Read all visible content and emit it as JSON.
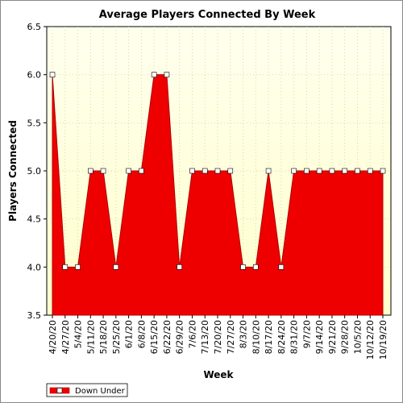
{
  "chart_data": {
    "type": "area",
    "title": "Average Players Connected By Week",
    "xlabel": "Week",
    "ylabel": "Players Connected",
    "ylim": [
      3.5,
      6.5
    ],
    "yticks": [
      "3.5",
      "4.0",
      "4.5",
      "5.0",
      "5.5",
      "6.0",
      "6.5"
    ],
    "grid": true,
    "legend_position": "bottom-left",
    "colors": {
      "fill": "#ee0000",
      "line": "#b00000",
      "plot_bg_top": "#ffffee",
      "plot_bg_bottom": "#ffffcc",
      "marker_fill": "#ffffff"
    },
    "x": [
      "4/20/20",
      "4/27/20",
      "5/4/20",
      "5/11/20",
      "5/18/20",
      "5/25/20",
      "6/1/20",
      "6/8/20",
      "6/15/20",
      "6/22/20",
      "6/29/20",
      "7/6/20",
      "7/13/20",
      "7/20/20",
      "7/27/20",
      "8/3/20",
      "8/10/20",
      "8/17/20",
      "8/24/20",
      "8/31/20",
      "9/7/20",
      "9/14/20",
      "9/21/20",
      "9/28/20",
      "10/5/20",
      "10/12/20",
      "10/19/20"
    ],
    "series": [
      {
        "name": "Down Under",
        "values": [
          6.0,
          4.0,
          4.0,
          5.0,
          5.0,
          4.0,
          5.0,
          5.0,
          6.0,
          6.0,
          4.0,
          5.0,
          5.0,
          5.0,
          5.0,
          4.0,
          4.0,
          5.0,
          4.0,
          5.0,
          5.0,
          5.0,
          5.0,
          5.0,
          5.0,
          5.0,
          5.0
        ]
      }
    ]
  }
}
